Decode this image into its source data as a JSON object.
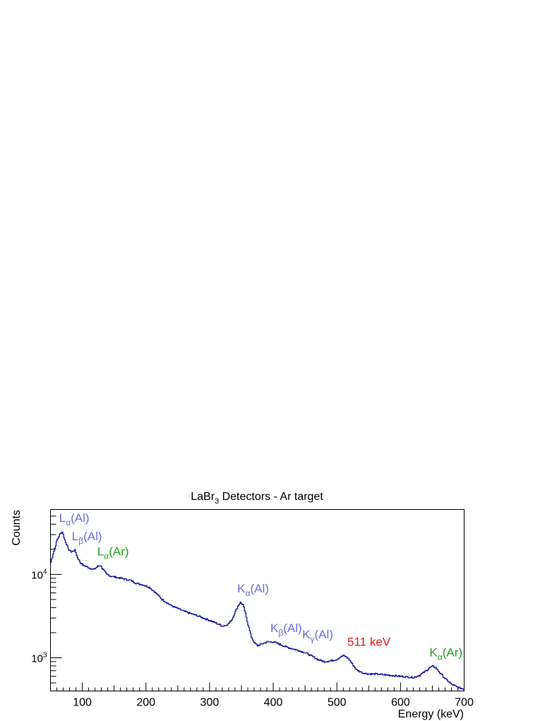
{
  "chart_data": {
    "type": "line",
    "title": {
      "main": "LaBr",
      "sub": "3",
      "rest": " Detectors - Ar target"
    },
    "xlabel": "Energy (keV)",
    "ylabel": "Counts",
    "xlim": [
      50,
      700
    ],
    "ylim": [
      400,
      60000
    ],
    "log_y": true,
    "grid": false,
    "x_ticks": [
      100,
      200,
      300,
      400,
      500,
      600,
      700
    ],
    "x_tick_labels": [
      "100",
      "200",
      "300",
      "400",
      "500",
      "600",
      "700"
    ],
    "y_tick_labels": [
      {
        "value": 1000,
        "base": "10",
        "exp": "3"
      },
      {
        "value": 10000,
        "base": "10",
        "exp": "4"
      }
    ],
    "series": [
      {
        "color": "#1a1aa0",
        "x": [
          50,
          55,
          60,
          65,
          68,
          72,
          78,
          82,
          88,
          92,
          96,
          100,
          110,
          118,
          124,
          128,
          132,
          138,
          145,
          160,
          175,
          185,
          195,
          205,
          215,
          225,
          240,
          260,
          280,
          300,
          310,
          320,
          328,
          335,
          340,
          345,
          348,
          352,
          356,
          360,
          365,
          370,
          375,
          380,
          390,
          400,
          410,
          420,
          430,
          440,
          450,
          460,
          470,
          480,
          490,
          500,
          505,
          510,
          515,
          520,
          525,
          530,
          540,
          550,
          560,
          580,
          600,
          620,
          630,
          640,
          645,
          650,
          655,
          660,
          670,
          680,
          690,
          700
        ],
        "y": [
          14000,
          19000,
          26000,
          31000,
          32500,
          26000,
          20000,
          18500,
          19500,
          16000,
          14000,
          13000,
          12000,
          11500,
          12500,
          12800,
          11500,
          10000,
          9500,
          9000,
          8500,
          7800,
          7500,
          7000,
          6000,
          5000,
          4200,
          3600,
          3200,
          2800,
          2600,
          2400,
          2500,
          2900,
          3600,
          4300,
          4600,
          4300,
          3400,
          2500,
          1800,
          1500,
          1400,
          1450,
          1550,
          1550,
          1450,
          1350,
          1280,
          1220,
          1150,
          1050,
          950,
          900,
          920,
          960,
          1020,
          1060,
          1020,
          930,
          820,
          720,
          660,
          640,
          640,
          620,
          600,
          580,
          620,
          700,
          760,
          790,
          760,
          680,
          560,
          480,
          440,
          420
        ]
      }
    ],
    "annotations": [
      {
        "name": "la-al",
        "base": "L",
        "sub": "α",
        "rest": "(Al)",
        "x": 68,
        "y": 32500,
        "group": "al"
      },
      {
        "name": "lb-al",
        "base": "L",
        "sub": "β",
        "rest": "(Al)",
        "x": 88,
        "y": 19500,
        "group": "al"
      },
      {
        "name": "la-ar",
        "base": "L",
        "sub": "α",
        "rest": "(Ar)",
        "x": 128,
        "y": 12800,
        "group": "ar"
      },
      {
        "name": "ka-al",
        "base": "K",
        "sub": "α",
        "rest": "(Al)",
        "x": 348,
        "y": 4600,
        "group": "al"
      },
      {
        "name": "kb-al",
        "base": "K",
        "sub": "β",
        "rest": "(Al)",
        "x": 400,
        "y": 1550,
        "group": "al"
      },
      {
        "name": "kg-al",
        "base": "K",
        "sub": "γ",
        "rest": "(Al)",
        "x": 450,
        "y": 1300,
        "group": "al"
      },
      {
        "name": "annihilation-511",
        "base": "511 keV",
        "sub": "",
        "rest": "",
        "x": 512,
        "y": 1060,
        "group": "red"
      },
      {
        "name": "ka-ar",
        "base": "K",
        "sub": "α",
        "rest": "(Ar)",
        "x": 650,
        "y": 790,
        "group": "ar"
      }
    ]
  }
}
